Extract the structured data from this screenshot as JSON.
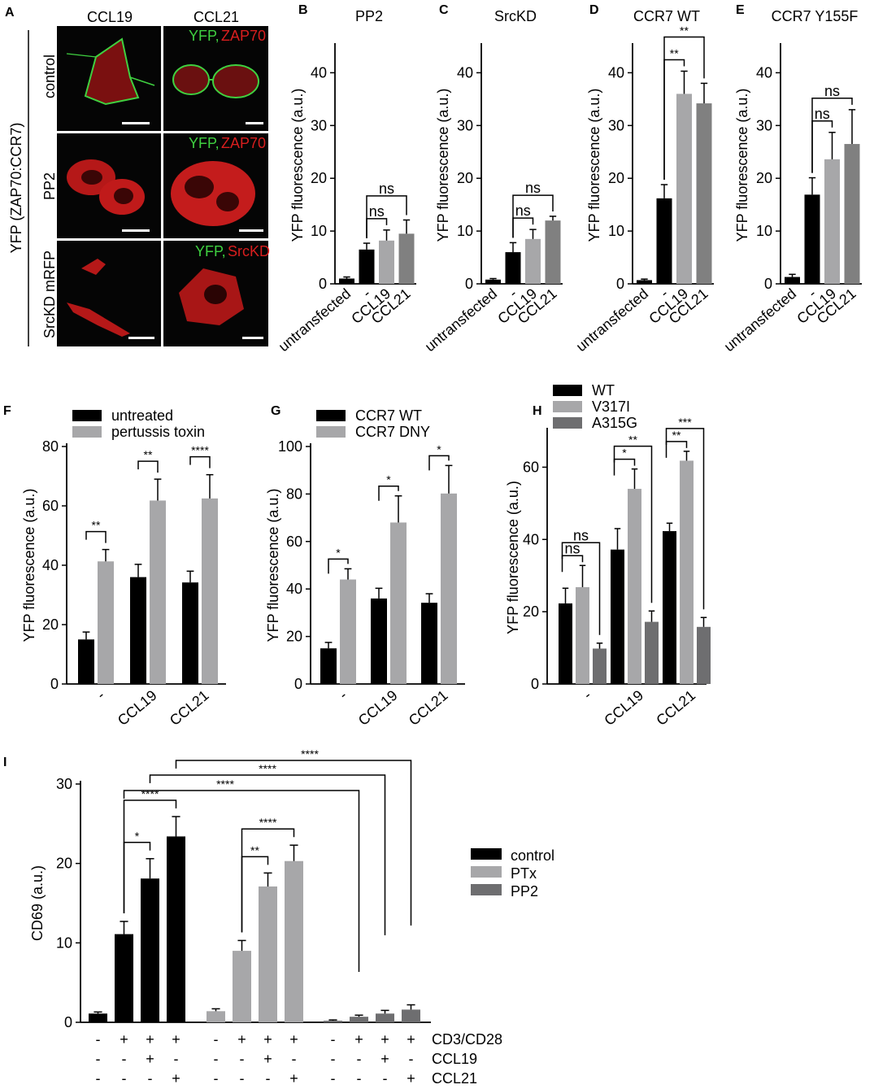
{
  "colors": {
    "black": "#000000",
    "light_gray": "#a7a7a9",
    "mid_gray": "#808080",
    "dark_gray": "#6e6e70",
    "micro_bg": "#050505",
    "micro_red": "#d81e1e",
    "micro_green": "#3fd040",
    "scale_bar": "#ffffff"
  },
  "panel_A": {
    "letter": "A",
    "col_labels": [
      "CCL19",
      "CCL21"
    ],
    "row_labels": [
      "control",
      "PP2",
      "SrcKD mRFP"
    ],
    "side_label": "YFP (ZAP70:CCR7)",
    "overlays": [
      {
        "green": "YFP,",
        "red": "ZAP70"
      },
      {
        "green": "YFP,",
        "red": "ZAP70"
      },
      {
        "green": "YFP,",
        "red": "SrcKD"
      }
    ]
  },
  "chart_data": [
    {
      "panel": "B",
      "type": "bar",
      "title": "PP2",
      "ylabel": "YFP fluorescence (a.u.)",
      "ylim": [
        0,
        45
      ],
      "yticks": [
        0,
        10,
        20,
        30,
        40
      ],
      "categories": [
        "untransfected",
        "-",
        "CCL19",
        "CCL21"
      ],
      "values": [
        1.0,
        6.5,
        8.2,
        9.5
      ],
      "errors": [
        0.3,
        1.2,
        2.0,
        2.6
      ],
      "significance": [
        {
          "a": 1,
          "b": 2,
          "label": "ns"
        },
        {
          "a": 1,
          "b": 3,
          "label": "ns"
        }
      ]
    },
    {
      "panel": "C",
      "type": "bar",
      "title": "SrcKD",
      "ylabel": "YFP fluorescence (a.u.)",
      "ylim": [
        0,
        45
      ],
      "yticks": [
        0,
        10,
        20,
        30,
        40
      ],
      "categories": [
        "untransfected",
        "-",
        "CCL19",
        "CCL21"
      ],
      "values": [
        0.8,
        6.0,
        8.5,
        12.0
      ],
      "errors": [
        0.2,
        1.8,
        1.8,
        0.8
      ],
      "significance": [
        {
          "a": 1,
          "b": 2,
          "label": "ns"
        },
        {
          "a": 1,
          "b": 3,
          "label": "ns"
        }
      ]
    },
    {
      "panel": "D",
      "type": "bar",
      "title": "CCR7 WT",
      "ylabel": "YFP fluorescence (a.u.)",
      "ylim": [
        0,
        45
      ],
      "yticks": [
        0,
        10,
        20,
        30,
        40
      ],
      "categories": [
        "untransfected",
        "-",
        "CCL19",
        "CCL21"
      ],
      "values": [
        0.7,
        16.2,
        36.0,
        34.2
      ],
      "errors": [
        0.2,
        2.6,
        4.3,
        3.8
      ],
      "significance": [
        {
          "a": 1,
          "b": 2,
          "label": "**"
        },
        {
          "a": 1,
          "b": 3,
          "label": "**"
        }
      ]
    },
    {
      "panel": "E",
      "type": "bar",
      "title": "CCR7 Y155F",
      "ylabel": "YFP fluorescence (a.u.)",
      "ylim": [
        0,
        45
      ],
      "yticks": [
        0,
        10,
        20,
        30,
        40
      ],
      "categories": [
        "untransfected",
        "-",
        "CCL19",
        "CCL21"
      ],
      "values": [
        1.3,
        16.9,
        23.6,
        26.5
      ],
      "errors": [
        0.5,
        3.2,
        5.1,
        6.5
      ],
      "significance": [
        {
          "a": 1,
          "b": 2,
          "label": "ns"
        },
        {
          "a": 1,
          "b": 3,
          "label": "ns"
        }
      ]
    },
    {
      "panel": "F",
      "type": "bar",
      "ylabel": "YFP fluorescence (a.u.)",
      "ylim": [
        0,
        80
      ],
      "yticks": [
        0,
        20,
        40,
        60,
        80
      ],
      "categories": [
        "-",
        "CCL19",
        "CCL21"
      ],
      "legend": [
        "untreated",
        "pertussis toxin"
      ],
      "series": [
        {
          "name": "untreated",
          "values": [
            15.0,
            36.0,
            34.2
          ],
          "errors": [
            2.5,
            4.3,
            3.8
          ]
        },
        {
          "name": "pertussis toxin",
          "values": [
            41.3,
            61.8,
            62.5
          ],
          "errors": [
            4.0,
            7.2,
            8.0
          ]
        }
      ],
      "significance": [
        {
          "group": 0,
          "label": "**"
        },
        {
          "group": 1,
          "label": "**"
        },
        {
          "group": 2,
          "label": "****"
        }
      ]
    },
    {
      "panel": "G",
      "type": "bar",
      "ylabel": "YFP fluorescence (a.u.)",
      "ylim": [
        0,
        100
      ],
      "yticks": [
        0,
        20,
        40,
        60,
        80,
        100
      ],
      "categories": [
        "-",
        "CCL19",
        "CCL21"
      ],
      "legend": [
        "CCR7 WT",
        "CCR7 DNY"
      ],
      "series": [
        {
          "name": "CCR7 WT",
          "values": [
            15.0,
            36.0,
            34.2
          ],
          "errors": [
            2.5,
            4.3,
            3.8
          ]
        },
        {
          "name": "CCR7 DNY",
          "values": [
            44.0,
            68.0,
            80.2
          ],
          "errors": [
            4.5,
            11.2,
            11.8
          ]
        }
      ],
      "significance": [
        {
          "group": 0,
          "label": "*"
        },
        {
          "group": 1,
          "label": "*"
        },
        {
          "group": 2,
          "label": "*"
        }
      ]
    },
    {
      "panel": "H",
      "type": "bar",
      "ylabel": "YFP fluorescence (a.u.)",
      "ylim": [
        0,
        70
      ],
      "yticks": [
        0,
        20,
        40,
        60
      ],
      "categories": [
        "-",
        "CCL19",
        "CCL21"
      ],
      "legend": [
        "WT",
        "V317I",
        "A315G"
      ],
      "series": [
        {
          "name": "WT",
          "values": [
            22.3,
            37.2,
            42.3
          ],
          "errors": [
            4.2,
            5.8,
            2.2
          ]
        },
        {
          "name": "V317I",
          "values": [
            26.8,
            54.0,
            61.8
          ],
          "errors": [
            6.0,
            5.5,
            2.6
          ]
        },
        {
          "name": "A315G",
          "values": [
            9.8,
            17.2,
            15.8
          ],
          "errors": [
            1.5,
            3.0,
            2.6
          ]
        }
      ],
      "significance": [
        {
          "group": 0,
          "a": 0,
          "b": 1,
          "label": "ns"
        },
        {
          "group": 0,
          "a": 0,
          "b": 2,
          "label": "ns"
        },
        {
          "group": 1,
          "a": 0,
          "b": 1,
          "label": "*"
        },
        {
          "group": 1,
          "a": 0,
          "b": 2,
          "label": "**"
        },
        {
          "group": 2,
          "a": 0,
          "b": 1,
          "label": "**"
        },
        {
          "group": 2,
          "a": 0,
          "b": 2,
          "label": "***"
        }
      ]
    },
    {
      "panel": "I",
      "type": "bar",
      "ylabel": "CD69 (a.u.)",
      "ylim": [
        0,
        30
      ],
      "yticks": [
        0,
        10,
        20,
        30
      ],
      "legend": [
        "control",
        "PTx",
        "PP2"
      ],
      "groups": [
        {
          "name": "control",
          "values": [
            1.1,
            11.1,
            18.1,
            23.4
          ],
          "errors": [
            0.2,
            1.6,
            2.5,
            2.5
          ]
        },
        {
          "name": "PTx",
          "values": [
            1.4,
            9.0,
            17.1,
            20.3
          ],
          "errors": [
            0.3,
            1.3,
            1.7,
            2.0
          ]
        },
        {
          "name": "PP2",
          "values": [
            0.2,
            0.7,
            1.1,
            1.6
          ],
          "errors": [
            0.1,
            0.2,
            0.4,
            0.6
          ]
        }
      ],
      "condition_rows": [
        {
          "label": "CD3/CD28",
          "signs": [
            "-",
            "+",
            "+",
            "+"
          ]
        },
        {
          "label": "CCL19",
          "signs": [
            "-",
            "-",
            "+",
            "-"
          ]
        },
        {
          "label": "CCL21",
          "signs": [
            "-",
            "-",
            "-",
            "+"
          ]
        }
      ],
      "significance_local": [
        {
          "group": 0,
          "a": 1,
          "b": 2,
          "label": "*"
        },
        {
          "group": 0,
          "a": 1,
          "b": 3,
          "label": "****"
        },
        {
          "group": 1,
          "a": 1,
          "b": 2,
          "label": "**"
        },
        {
          "group": 1,
          "a": 1,
          "b": 3,
          "label": "****"
        }
      ],
      "significance_long": [
        {
          "from_bar": 1,
          "to_bar": 9,
          "label": "****"
        },
        {
          "from_bar": 2,
          "to_bar": 10,
          "label": "****"
        },
        {
          "from_bar": 3,
          "to_bar": 11,
          "label": "****"
        }
      ]
    }
  ]
}
